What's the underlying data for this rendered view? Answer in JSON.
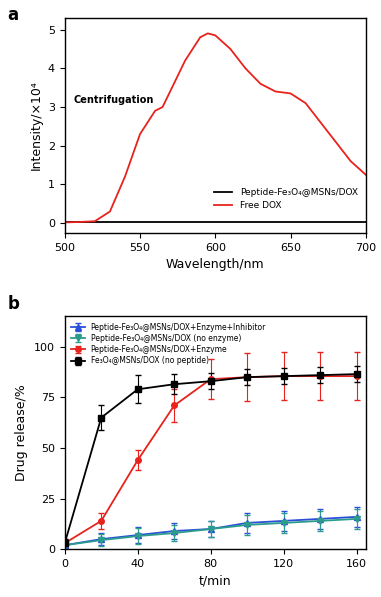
{
  "chart_data": [
    {
      "type": "line",
      "panel_label": "a",
      "x_label": "Wavelength/nm",
      "y_label": "Intensity/×10⁴",
      "annotations": [
        "Centrifugation"
      ],
      "xlim": [
        500,
        700
      ],
      "xticks": [
        500,
        550,
        600,
        650,
        700
      ],
      "ylim": [
        -0.25,
        5.3
      ],
      "yticks": [
        0,
        1,
        2,
        3,
        4,
        5
      ],
      "legend": "lower right",
      "series": [
        {
          "name": "Peptide-Fe₃O₄@MSNs/DOX",
          "color": "#000000",
          "line_style": "solid",
          "x": [
            500,
            550,
            600,
            650,
            700
          ],
          "values": [
            0.03,
            0.03,
            0.03,
            0.03,
            0.03
          ]
        },
        {
          "name": "Free DOX",
          "color": "#e8221c",
          "line_style": "solid",
          "x": [
            500,
            510,
            520,
            530,
            540,
            550,
            560,
            565,
            570,
            580,
            590,
            595,
            600,
            610,
            620,
            630,
            640,
            650,
            660,
            670,
            680,
            690,
            700
          ],
          "values": [
            0.02,
            0.03,
            0.05,
            0.3,
            1.2,
            2.3,
            2.9,
            3.0,
            3.4,
            4.2,
            4.8,
            4.9,
            4.85,
            4.5,
            4.0,
            3.6,
            3.4,
            3.35,
            3.1,
            2.6,
            2.1,
            1.6,
            1.25
          ]
        }
      ]
    },
    {
      "type": "line",
      "panel_label": "b",
      "x_label": "t/min",
      "y_label": "Drug release/%",
      "xlim": [
        0,
        165
      ],
      "xticks": [
        0,
        40,
        80,
        120,
        160
      ],
      "ylim": [
        0,
        115
      ],
      "yticks": [
        0,
        25,
        50,
        75,
        100
      ],
      "legend": "upper left",
      "x": [
        0,
        20,
        40,
        60,
        80,
        100,
        120,
        140,
        160
      ],
      "series": [
        {
          "name": "Peptide-Fe₃O₄@MSNs/DOX+Enzyme+Inhibitor",
          "color": "#2b4fd8",
          "marker": "^",
          "values": [
            2,
            5,
            7,
            9,
            10,
            13,
            14,
            15,
            16
          ],
          "errors": [
            2,
            3,
            4,
            4,
            4,
            5,
            5,
            5,
            5
          ]
        },
        {
          "name": "Peptide-Fe₃O₄@MSNs/DOX (no enzyme)",
          "color": "#2b9c8c",
          "marker": "v",
          "values": [
            2,
            4.5,
            6.5,
            8,
            10,
            12,
            13,
            14,
            15
          ],
          "errors": [
            2,
            3,
            4,
            4,
            4,
            5,
            5,
            5,
            5
          ]
        },
        {
          "name": "Peptide-Fe₃O₄@MSNs/DOX+Enzyme",
          "color": "#e8221c",
          "marker": "o",
          "values": [
            3,
            14,
            44,
            71,
            84,
            85,
            85.5,
            85.5,
            85.5
          ],
          "errors": [
            2,
            4,
            5,
            8,
            10,
            12,
            12,
            12,
            12
          ]
        },
        {
          "name": "Fe₃O₄@MSNs/DOX (no peptide)",
          "color": "#000000",
          "marker": "s",
          "values": [
            3,
            65,
            79,
            81.5,
            83,
            85,
            85.5,
            86,
            86.5
          ],
          "errors": [
            2,
            6,
            7,
            5,
            4,
            4,
            4,
            4,
            4
          ]
        }
      ]
    }
  ]
}
